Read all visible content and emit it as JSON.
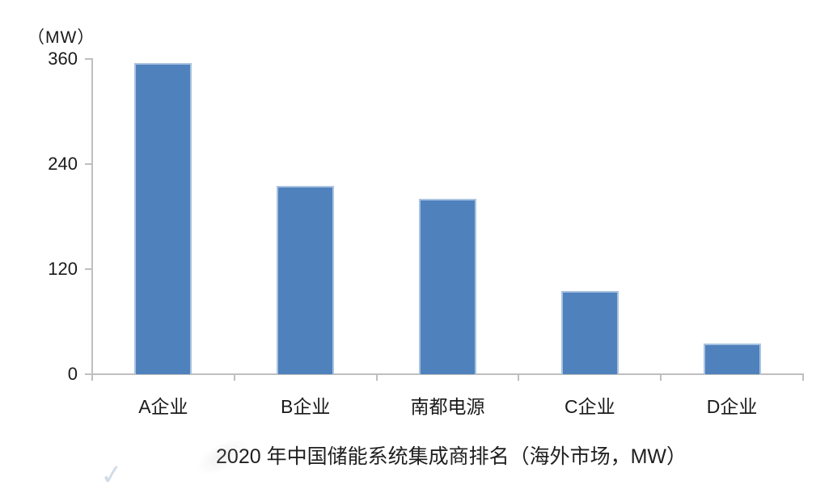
{
  "chart_data": {
    "type": "bar",
    "categories": [
      "A企业",
      "B企业",
      "南都电源",
      "C企业",
      "D企业"
    ],
    "values": [
      355,
      215,
      200,
      95,
      35
    ],
    "title": "2020 年中国储能系统集成商排名（海外市场，MW）",
    "xlabel": "",
    "ylabel": "（MW）",
    "yticks": [
      0,
      120,
      240,
      360
    ],
    "ylim": [
      0,
      360
    ],
    "grid": false,
    "legend_position": "none",
    "colors": {
      "bar_fill": "#4F81BD",
      "bar_border": "#A9C3E0",
      "axis": "#BFBFBF",
      "text": "#1A1A1A"
    }
  }
}
